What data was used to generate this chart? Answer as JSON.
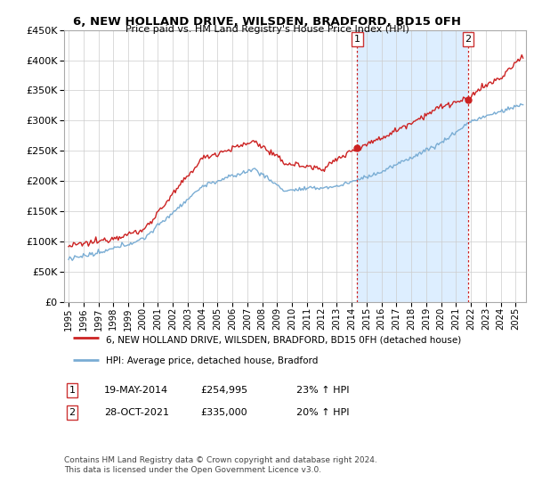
{
  "title": "6, NEW HOLLAND DRIVE, WILSDEN, BRADFORD, BD15 0FH",
  "subtitle": "Price paid vs. HM Land Registry's House Price Index (HPI)",
  "ylim": [
    0,
    450000
  ],
  "yticks": [
    0,
    50000,
    100000,
    150000,
    200000,
    250000,
    300000,
    350000,
    400000,
    450000
  ],
  "xlim_start": 1994.7,
  "xlim_end": 2025.7,
  "purchase1_date": 2014.37,
  "purchase1_price": 254995,
  "purchase1_label": "1",
  "purchase2_date": 2021.82,
  "purchase2_price": 335000,
  "purchase2_label": "2",
  "legend_line1": "6, NEW HOLLAND DRIVE, WILSDEN, BRADFORD, BD15 0FH (detached house)",
  "legend_line2": "HPI: Average price, detached house, Bradford",
  "annotation1_date": "19-MAY-2014",
  "annotation1_price": "£254,995",
  "annotation1_pct": "23% ↑ HPI",
  "annotation2_date": "28-OCT-2021",
  "annotation2_price": "£335,000",
  "annotation2_pct": "20% ↑ HPI",
  "footer": "Contains HM Land Registry data © Crown copyright and database right 2024.\nThis data is licensed under the Open Government Licence v3.0.",
  "line_color_red": "#cc2222",
  "line_color_blue": "#7aadd4",
  "bg_color": "#ffffff",
  "highlight_color": "#ddeeff",
  "grid_color": "#cccccc"
}
